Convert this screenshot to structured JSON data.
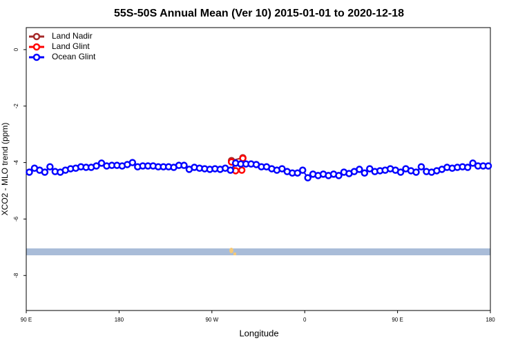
{
  "chart_data": {
    "type": "line",
    "title": "55S-50S Annual Mean (Ver 10)   2015-01-01 to 2020-12-18",
    "x_label": "Longitude",
    "y_label": "XCO2 - MLO trend (ppm)",
    "xlim": [
      90,
      540
    ],
    "xticks": [
      {
        "value": 90,
        "label": "90 E"
      },
      {
        "value": 180,
        "label": "180"
      },
      {
        "value": 270,
        "label": "90 W"
      },
      {
        "value": 360,
        "label": "0"
      },
      {
        "value": 450,
        "label": "90 E"
      },
      {
        "value": 540,
        "label": "180"
      }
    ],
    "ylim": [
      -9.24,
      0.78
    ],
    "yticks": [
      0,
      -2,
      -4,
      -6,
      -8
    ],
    "legend": "top-left",
    "series": [
      {
        "name": "Land Nadir",
        "color": "#a52a2a",
        "x": [
          289,
          300
        ],
        "values": [
          -3.93,
          -3.83
        ]
      },
      {
        "name": "Land Glint",
        "color": "#ff0000",
        "x": [
          289,
          293,
          299,
          300
        ],
        "values": [
          -3.98,
          -4.29,
          -4.27,
          -3.85
        ]
      },
      {
        "name": "Ocean Glint",
        "color": "#0000ff",
        "x": [
          93,
          98,
          103,
          108,
          113,
          118,
          123,
          128,
          133,
          138,
          143,
          148,
          153,
          158,
          163,
          168,
          173,
          178,
          183,
          188,
          193,
          198,
          203,
          208,
          213,
          218,
          223,
          228,
          233,
          238,
          243,
          248,
          253,
          258,
          263,
          268,
          273,
          278,
          283,
          288,
          293,
          298,
          303,
          308,
          313,
          318,
          323,
          328,
          333,
          338,
          343,
          348,
          353,
          358,
          363,
          368,
          373,
          378,
          383,
          388,
          393,
          398,
          403,
          408,
          413,
          418,
          423,
          428,
          433,
          438,
          443,
          448,
          453,
          458,
          463,
          468,
          473,
          478,
          483,
          488,
          493,
          498,
          503,
          508,
          513,
          518,
          523,
          528,
          533,
          538
        ],
        "values": [
          -4.34,
          -4.2,
          -4.27,
          -4.34,
          -4.15,
          -4.32,
          -4.34,
          -4.27,
          -4.22,
          -4.2,
          -4.15,
          -4.17,
          -4.17,
          -4.12,
          -4.02,
          -4.12,
          -4.1,
          -4.1,
          -4.12,
          -4.07,
          -4.0,
          -4.15,
          -4.12,
          -4.12,
          -4.12,
          -4.15,
          -4.15,
          -4.15,
          -4.17,
          -4.1,
          -4.1,
          -4.24,
          -4.17,
          -4.2,
          -4.22,
          -4.24,
          -4.22,
          -4.24,
          -4.2,
          -4.27,
          -4.02,
          -4.05,
          -4.05,
          -4.05,
          -4.07,
          -4.15,
          -4.15,
          -4.22,
          -4.27,
          -4.22,
          -4.32,
          -4.37,
          -4.37,
          -4.27,
          -4.54,
          -4.41,
          -4.46,
          -4.41,
          -4.46,
          -4.41,
          -4.46,
          -4.34,
          -4.39,
          -4.32,
          -4.24,
          -4.37,
          -4.22,
          -4.32,
          -4.29,
          -4.27,
          -4.22,
          -4.27,
          -4.34,
          -4.22,
          -4.29,
          -4.34,
          -4.15,
          -4.32,
          -4.34,
          -4.29,
          -4.24,
          -4.17,
          -4.2,
          -4.17,
          -4.15,
          -4.17,
          -4.02,
          -4.12,
          -4.12,
          -4.12
        ]
      }
    ]
  }
}
